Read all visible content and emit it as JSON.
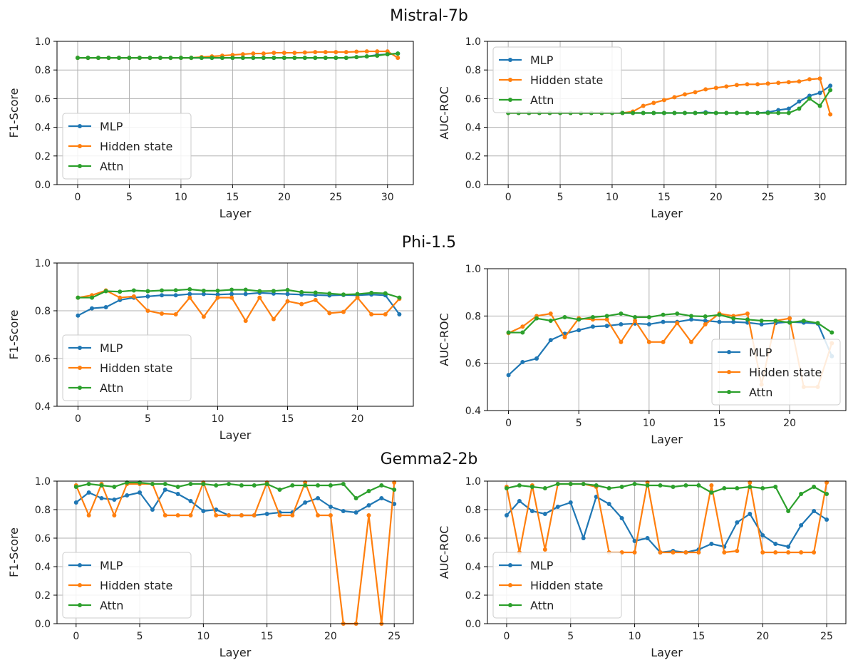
{
  "colors": {
    "mlp": "#1f77b4",
    "hidden": "#ff7f0e",
    "attn": "#2ca02c",
    "grid": "#b0b0b0",
    "axis": "#000000"
  },
  "row_titles": [
    "Mistral-7b",
    "Phi-1.5",
    "Gemma2-2b"
  ],
  "chart_data": [
    {
      "id": "mistral-f1",
      "type": "line",
      "title": "Mistral-7b",
      "xlabel": "Layer",
      "ylabel": "F1-Score",
      "xlim": [
        -2,
        32.5
      ],
      "ylim": [
        0.0,
        1.0
      ],
      "xticks": [
        0,
        5,
        10,
        15,
        20,
        25,
        30
      ],
      "yticks": [
        0.0,
        0.2,
        0.4,
        0.6,
        0.8,
        1.0
      ],
      "legend": "lower-left",
      "x": [
        0,
        1,
        2,
        3,
        4,
        5,
        6,
        7,
        8,
        9,
        10,
        11,
        12,
        13,
        14,
        15,
        16,
        17,
        18,
        19,
        20,
        21,
        22,
        23,
        24,
        25,
        26,
        27,
        28,
        29,
        30,
        31
      ],
      "series": [
        {
          "name": "MLP",
          "values": [
            0.885,
            0.885,
            0.885,
            0.885,
            0.885,
            0.885,
            0.885,
            0.885,
            0.885,
            0.885,
            0.885,
            0.885,
            0.885,
            0.885,
            0.885,
            0.885,
            0.885,
            0.885,
            0.885,
            0.885,
            0.885,
            0.885,
            0.885,
            0.885,
            0.885,
            0.885,
            0.885,
            0.89,
            0.895,
            0.905,
            0.91,
            0.915
          ]
        },
        {
          "name": "Hidden state",
          "values": [
            0.885,
            0.885,
            0.885,
            0.885,
            0.885,
            0.885,
            0.885,
            0.885,
            0.885,
            0.885,
            0.885,
            0.885,
            0.89,
            0.895,
            0.9,
            0.905,
            0.91,
            0.915,
            0.915,
            0.92,
            0.92,
            0.92,
            0.922,
            0.925,
            0.925,
            0.925,
            0.925,
            0.928,
            0.93,
            0.93,
            0.93,
            0.885
          ]
        },
        {
          "name": "Attn",
          "values": [
            0.885,
            0.885,
            0.885,
            0.885,
            0.885,
            0.885,
            0.885,
            0.885,
            0.885,
            0.885,
            0.885,
            0.885,
            0.885,
            0.885,
            0.885,
            0.885,
            0.885,
            0.885,
            0.885,
            0.885,
            0.885,
            0.885,
            0.885,
            0.885,
            0.885,
            0.885,
            0.885,
            0.89,
            0.895,
            0.9,
            0.91,
            0.915
          ]
        }
      ]
    },
    {
      "id": "mistral-auc",
      "type": "line",
      "title": "Mistral-7b",
      "xlabel": "Layer",
      "ylabel": "AUC-ROC",
      "xlim": [
        -2,
        32.5
      ],
      "ylim": [
        0.0,
        1.0
      ],
      "xticks": [
        0,
        5,
        10,
        15,
        20,
        25,
        30
      ],
      "yticks": [
        0.0,
        0.2,
        0.4,
        0.6,
        0.8,
        1.0
      ],
      "legend": "upper-left",
      "x": [
        0,
        1,
        2,
        3,
        4,
        5,
        6,
        7,
        8,
        9,
        10,
        11,
        12,
        13,
        14,
        15,
        16,
        17,
        18,
        19,
        20,
        21,
        22,
        23,
        24,
        25,
        26,
        27,
        28,
        29,
        30,
        31
      ],
      "series": [
        {
          "name": "MLP",
          "values": [
            0.5,
            0.5,
            0.5,
            0.5,
            0.5,
            0.5,
            0.5,
            0.5,
            0.5,
            0.5,
            0.5,
            0.5,
            0.5,
            0.5,
            0.5,
            0.5,
            0.5,
            0.5,
            0.5,
            0.505,
            0.5,
            0.5,
            0.5,
            0.5,
            0.5,
            0.505,
            0.52,
            0.53,
            0.58,
            0.62,
            0.64,
            0.69
          ]
        },
        {
          "name": "Hidden state",
          "values": [
            0.5,
            0.5,
            0.5,
            0.5,
            0.5,
            0.5,
            0.5,
            0.5,
            0.5,
            0.5,
            0.5,
            0.5,
            0.51,
            0.55,
            0.57,
            0.59,
            0.61,
            0.63,
            0.645,
            0.665,
            0.675,
            0.685,
            0.695,
            0.7,
            0.7,
            0.705,
            0.71,
            0.715,
            0.72,
            0.735,
            0.74,
            0.49
          ]
        },
        {
          "name": "Attn",
          "values": [
            0.5,
            0.5,
            0.5,
            0.5,
            0.5,
            0.5,
            0.5,
            0.5,
            0.5,
            0.5,
            0.5,
            0.5,
            0.5,
            0.5,
            0.5,
            0.5,
            0.5,
            0.5,
            0.5,
            0.5,
            0.5,
            0.5,
            0.5,
            0.5,
            0.5,
            0.5,
            0.5,
            0.5,
            0.53,
            0.6,
            0.55,
            0.66
          ]
        }
      ]
    },
    {
      "id": "phi-f1",
      "type": "line",
      "title": "Phi-1.5",
      "xlabel": "Layer",
      "ylabel": "F1-Score",
      "xlim": [
        -1.5,
        24
      ],
      "ylim": [
        0.4,
        1.0
      ],
      "xticks": [
        0,
        5,
        10,
        15,
        20
      ],
      "yticks": [
        0.4,
        0.6,
        0.8,
        1.0
      ],
      "legend": "lower-left",
      "x": [
        0,
        1,
        2,
        3,
        4,
        5,
        6,
        7,
        8,
        9,
        10,
        11,
        12,
        13,
        14,
        15,
        16,
        17,
        18,
        19,
        20,
        21,
        22,
        23
      ],
      "series": [
        {
          "name": "MLP",
          "values": [
            0.78,
            0.81,
            0.815,
            0.845,
            0.855,
            0.86,
            0.865,
            0.865,
            0.87,
            0.87,
            0.868,
            0.87,
            0.87,
            0.875,
            0.872,
            0.87,
            0.868,
            0.866,
            0.864,
            0.866,
            0.865,
            0.868,
            0.865,
            0.785
          ]
        },
        {
          "name": "Hidden state",
          "values": [
            0.855,
            0.865,
            0.885,
            0.855,
            0.86,
            0.8,
            0.788,
            0.785,
            0.855,
            0.775,
            0.855,
            0.855,
            0.758,
            0.855,
            0.765,
            0.84,
            0.828,
            0.845,
            0.79,
            0.795,
            0.855,
            0.785,
            0.785,
            0.85
          ]
        },
        {
          "name": "Attn",
          "values": [
            0.855,
            0.855,
            0.882,
            0.88,
            0.885,
            0.882,
            0.885,
            0.886,
            0.89,
            0.884,
            0.884,
            0.888,
            0.888,
            0.882,
            0.883,
            0.887,
            0.878,
            0.876,
            0.872,
            0.868,
            0.87,
            0.875,
            0.873,
            0.855
          ]
        }
      ]
    },
    {
      "id": "phi-auc",
      "type": "line",
      "title": "Phi-1.5",
      "xlabel": "Layer",
      "ylabel": "AUC-ROC",
      "xlim": [
        -1.5,
        24
      ],
      "ylim": [
        0.4,
        1.0
      ],
      "xticks": [
        0,
        5,
        10,
        15,
        20
      ],
      "yticks": [
        0.4,
        0.6,
        0.8,
        1.0
      ],
      "legend": "lower-right",
      "x": [
        0,
        1,
        2,
        3,
        4,
        5,
        6,
        7,
        8,
        9,
        10,
        11,
        12,
        13,
        14,
        15,
        16,
        17,
        18,
        19,
        20,
        21,
        22,
        23
      ],
      "series": [
        {
          "name": "MLP",
          "values": [
            0.55,
            0.605,
            0.62,
            0.698,
            0.725,
            0.74,
            0.755,
            0.758,
            0.765,
            0.768,
            0.765,
            0.775,
            0.775,
            0.785,
            0.78,
            0.775,
            0.775,
            0.772,
            0.765,
            0.77,
            0.775,
            0.772,
            0.768,
            0.63
          ]
        },
        {
          "name": "Hidden state",
          "values": [
            0.728,
            0.755,
            0.8,
            0.81,
            0.71,
            0.79,
            0.785,
            0.785,
            0.69,
            0.78,
            0.69,
            0.69,
            0.77,
            0.69,
            0.765,
            0.81,
            0.8,
            0.81,
            0.51,
            0.78,
            0.79,
            0.5,
            0.5,
            0.685
          ]
        },
        {
          "name": "Attn",
          "values": [
            0.73,
            0.73,
            0.79,
            0.78,
            0.795,
            0.785,
            0.795,
            0.8,
            0.81,
            0.795,
            0.795,
            0.805,
            0.81,
            0.8,
            0.798,
            0.805,
            0.79,
            0.785,
            0.78,
            0.78,
            0.772,
            0.78,
            0.77,
            0.73
          ]
        }
      ]
    },
    {
      "id": "gemma-f1",
      "type": "line",
      "title": "Gemma2-2b",
      "xlabel": "Layer",
      "ylabel": "F1-Score",
      "xlim": [
        -1.5,
        26.5
      ],
      "ylim": [
        0.0,
        1.0
      ],
      "xticks": [
        0,
        5,
        10,
        15,
        20,
        25
      ],
      "yticks": [
        0.0,
        0.2,
        0.4,
        0.6,
        0.8,
        1.0
      ],
      "legend": "lower-left",
      "x": [
        0,
        1,
        2,
        3,
        4,
        5,
        6,
        7,
        8,
        9,
        10,
        11,
        12,
        13,
        14,
        15,
        16,
        17,
        18,
        19,
        20,
        21,
        22,
        23,
        24,
        25
      ],
      "series": [
        {
          "name": "MLP",
          "values": [
            0.85,
            0.92,
            0.88,
            0.87,
            0.9,
            0.92,
            0.8,
            0.94,
            0.91,
            0.86,
            0.79,
            0.8,
            0.76,
            0.76,
            0.76,
            0.77,
            0.78,
            0.78,
            0.85,
            0.88,
            0.82,
            0.79,
            0.78,
            0.83,
            0.88,
            0.84
          ]
        },
        {
          "name": "Hidden state",
          "values": [
            0.97,
            0.76,
            0.98,
            0.76,
            0.98,
            0.98,
            0.98,
            0.76,
            0.76,
            0.76,
            0.99,
            0.76,
            0.76,
            0.76,
            0.76,
            0.99,
            0.76,
            0.76,
            0.99,
            0.76,
            0.76,
            0.0,
            0.0,
            0.76,
            0.0,
            0.99
          ]
        },
        {
          "name": "Attn",
          "values": [
            0.96,
            0.98,
            0.97,
            0.96,
            0.99,
            0.99,
            0.98,
            0.98,
            0.96,
            0.98,
            0.98,
            0.97,
            0.98,
            0.97,
            0.97,
            0.98,
            0.94,
            0.97,
            0.97,
            0.97,
            0.97,
            0.98,
            0.88,
            0.93,
            0.97,
            0.94
          ]
        }
      ]
    },
    {
      "id": "gemma-auc",
      "type": "line",
      "title": "Gemma2-2b",
      "xlabel": "Layer",
      "ylabel": "AUC-ROC",
      "xlim": [
        -1.5,
        26.5
      ],
      "ylim": [
        0.0,
        1.0
      ],
      "xticks": [
        0,
        5,
        10,
        15,
        20,
        25
      ],
      "yticks": [
        0.0,
        0.2,
        0.4,
        0.6,
        0.8,
        1.0
      ],
      "legend": "lower-left",
      "x": [
        0,
        1,
        2,
        3,
        4,
        5,
        6,
        7,
        8,
        9,
        10,
        11,
        12,
        13,
        14,
        15,
        16,
        17,
        18,
        19,
        20,
        21,
        22,
        23,
        24,
        25
      ],
      "series": [
        {
          "name": "MLP",
          "values": [
            0.76,
            0.86,
            0.79,
            0.77,
            0.82,
            0.85,
            0.6,
            0.89,
            0.84,
            0.74,
            0.58,
            0.6,
            0.5,
            0.51,
            0.5,
            0.52,
            0.56,
            0.54,
            0.71,
            0.77,
            0.62,
            0.56,
            0.54,
            0.69,
            0.79,
            0.73
          ]
        },
        {
          "name": "Hidden state",
          "values": [
            0.96,
            0.5,
            0.97,
            0.52,
            0.98,
            0.98,
            0.98,
            0.96,
            0.5,
            0.5,
            0.5,
            0.99,
            0.5,
            0.5,
            0.5,
            0.5,
            0.97,
            0.5,
            0.51,
            0.99,
            0.5,
            0.5,
            0.5,
            0.5,
            0.5,
            0.99
          ]
        },
        {
          "name": "Attn",
          "values": [
            0.95,
            0.97,
            0.96,
            0.95,
            0.98,
            0.98,
            0.98,
            0.97,
            0.95,
            0.96,
            0.98,
            0.97,
            0.97,
            0.96,
            0.97,
            0.97,
            0.92,
            0.95,
            0.95,
            0.96,
            0.95,
            0.96,
            0.79,
            0.91,
            0.96,
            0.91
          ]
        }
      ]
    }
  ]
}
